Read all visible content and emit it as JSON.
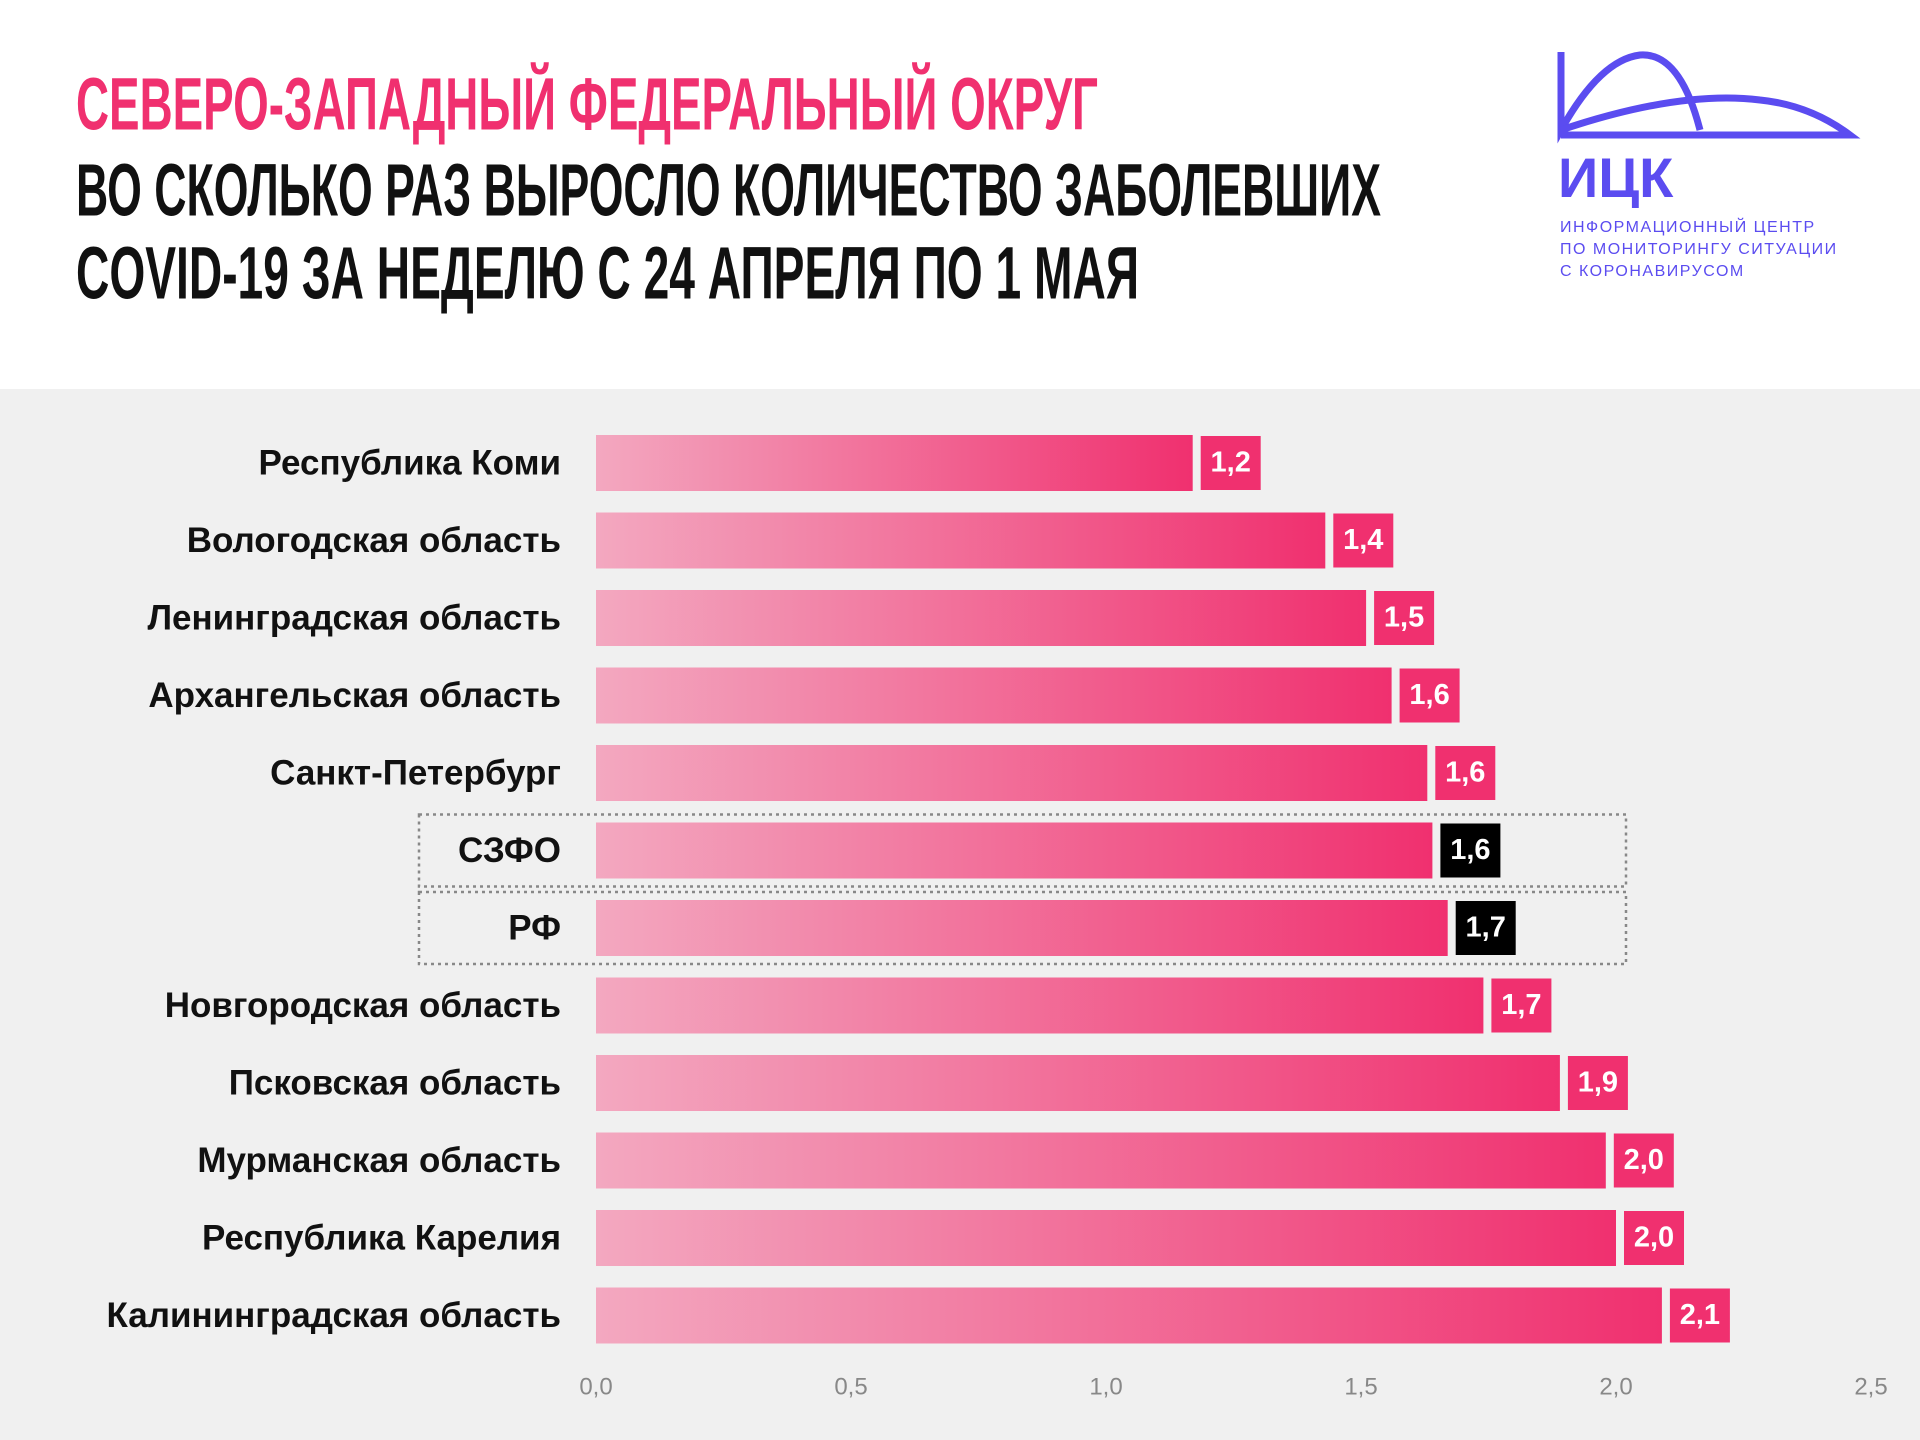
{
  "chart_data": {
    "type": "bar",
    "orientation": "horizontal",
    "title": "СЕВЕРО-ЗАПАДНЫЙ ФЕДЕРАЛЬНЫЙ ОКРУГ",
    "subtitle": [
      "ВО СКОЛЬКО РАЗ ВЫРОСЛО КОЛИЧЕСТВО ЗАБОЛЕВШИХ",
      "COVID-19 ЗА НЕДЕЛЮ С 24 АПРЕЛЯ ПО 1 МАЯ"
    ],
    "categories": [
      "Республика Коми",
      "Вологодская область",
      "Ленинградская область",
      "Архангельская область",
      "Санкт-Петербург",
      "СЗФО",
      "РФ",
      "Новгородская область",
      "Псковская область",
      "Мурманская область",
      "Республика Карелия",
      "Калининградская область"
    ],
    "values": [
      1.17,
      1.43,
      1.51,
      1.56,
      1.63,
      1.64,
      1.67,
      1.74,
      1.89,
      1.98,
      2.0,
      2.09
    ],
    "value_labels": [
      "1,2",
      "1,4",
      "1,5",
      "1,6",
      "1,6",
      "1,6",
      "1,7",
      "1,7",
      "1,9",
      "2,0",
      "2,0",
      "2,1"
    ],
    "highlight_indices": [
      5,
      6
    ],
    "color": "#f0306f",
    "xlim": [
      0,
      2.5
    ],
    "xticks": [
      {
        "value": 0,
        "label": "0,0"
      },
      {
        "value": 0.5,
        "label": "0,5"
      },
      {
        "value": 1,
        "label": "1,0"
      },
      {
        "value": 1.5,
        "label": "1,5"
      },
      {
        "value": 2,
        "label": "2,0"
      },
      {
        "value": 2.5,
        "label": "2,5"
      }
    ]
  },
  "logo": {
    "name": "ИЦК",
    "lines": [
      "ИНФОРМАЦИОННЫЙ ЦЕНТР",
      "ПО МОНИТОРИНГУ СИТУАЦИИ",
      "С КОРОНАВИРУСОМ"
    ]
  }
}
